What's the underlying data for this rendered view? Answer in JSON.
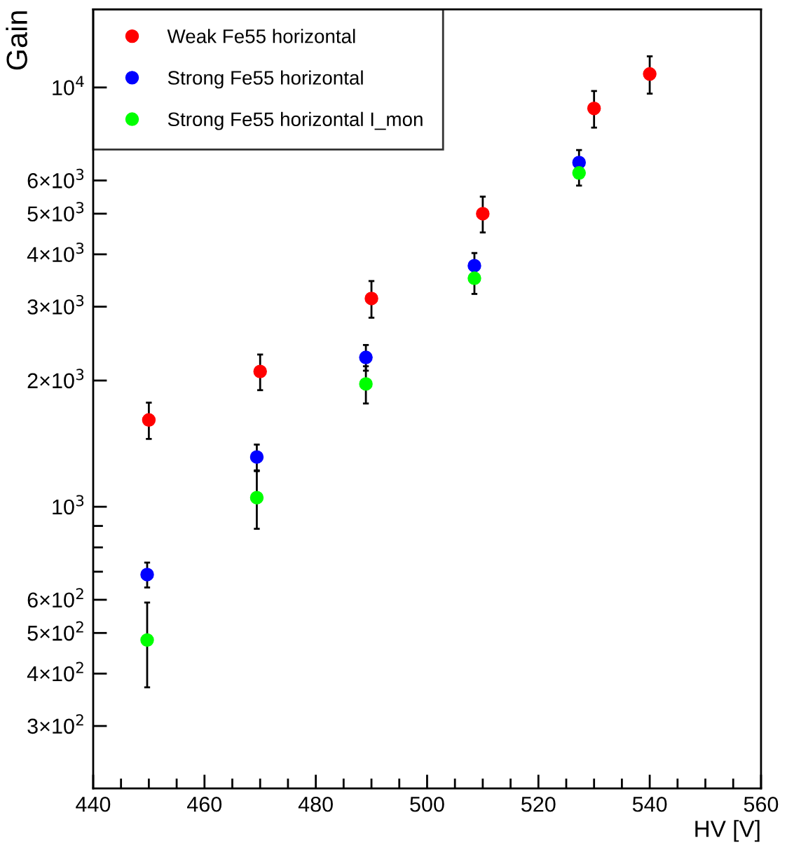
{
  "chart_data": {
    "type": "scatter",
    "xlabel": "HV [V]",
    "ylabel": "Gain",
    "xlim": [
      440,
      560
    ],
    "xticks": [
      440,
      {
        "value": 445,
        "label": null
      },
      {
        "value": 450,
        "label": null
      },
      {
        "value": 455,
        "label": null
      },
      460,
      {
        "value": 465,
        "label": null
      },
      {
        "value": 470,
        "label": null
      },
      {
        "value": 475,
        "label": null
      },
      480,
      {
        "value": 485,
        "label": null
      },
      {
        "value": 490,
        "label": null
      },
      {
        "value": 495,
        "label": null
      },
      500,
      {
        "value": 505,
        "label": null
      },
      {
        "value": 510,
        "label": null
      },
      {
        "value": 515,
        "label": null
      },
      520,
      {
        "value": 525,
        "label": null
      },
      {
        "value": 530,
        "label": null
      },
      {
        "value": 535,
        "label": null
      },
      540,
      {
        "value": 545,
        "label": null
      },
      {
        "value": 550,
        "label": null
      },
      {
        "value": 555,
        "label": null
      },
      560
    ],
    "log": "y",
    "ylim": [
      213,
      15350
    ],
    "yticks": [
      {
        "value": 300,
        "label": "3×10$^{2}$"
      },
      {
        "value": 400,
        "label": "4×10$^{2}$"
      },
      {
        "value": 500,
        "label": "5×10$^{2}$"
      },
      {
        "value": 600,
        "label": "6×10$^{2}$"
      },
      {
        "value": 700,
        "label": null
      },
      {
        "value": 800,
        "label": null
      },
      {
        "value": 900,
        "label": null
      },
      {
        "value": 1000,
        "label": "10$^{3}$"
      },
      {
        "value": 2000,
        "label": "2×10$^{3}$"
      },
      {
        "value": 3000,
        "label": "3×10$^{3}$"
      },
      {
        "value": 4000,
        "label": "4×10$^{3}$"
      },
      {
        "value": 5000,
        "label": "5×10$^{3}$"
      },
      {
        "value": 6000,
        "label": "6×10$^{3}$"
      },
      {
        "value": 10000,
        "label": "10$^{4}$"
      }
    ],
    "marker": "circle",
    "legend": "top left",
    "grid": false,
    "series": [
      {
        "name": "Weak Fe55 horizontal",
        "color": "#ff0000",
        "x": [
          450,
          470,
          490,
          510,
          530,
          540
        ],
        "values": [
          1611,
          2102,
          3139,
          5000,
          8914,
          10770
        ],
        "errors": [
          160,
          205,
          315,
          490,
          890,
          1100
        ]
      },
      {
        "name": "Strong Fe55 horizontal",
        "color": "#0000ff",
        "x": [
          449.7,
          469.4,
          489.0,
          508.5,
          527.3
        ],
        "values": [
          689,
          1314,
          2271,
          3758,
          6623
        ],
        "errors": [
          47,
          93,
          160,
          270,
          470
        ]
      },
      {
        "name": "Strong Fe55 horizontal I_mon",
        "color": "#00ff00",
        "x": [
          449.7,
          469.4,
          489.0,
          508.5,
          527.3
        ],
        "values": [
          481,
          1051,
          1963,
          3508,
          6254
        ],
        "errors": [
          110,
          165,
          200,
          290,
          420
        ]
      }
    ]
  }
}
